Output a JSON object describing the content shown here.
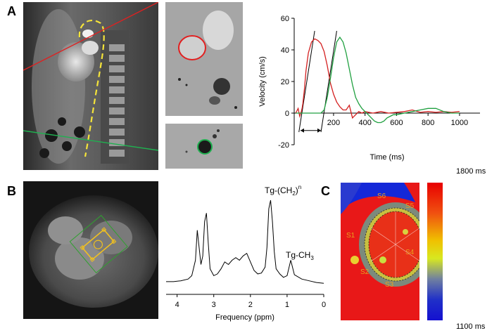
{
  "panels": {
    "a": {
      "letter": "A",
      "chart_data": {
        "type": "line",
        "xlabel": "Time (ms)",
        "ylabel": "Velocity (cm/s)",
        "xlim": [
          -50,
          1130
        ],
        "ylim": [
          -20,
          60
        ],
        "xticks": [
          "200",
          "400",
          "600",
          "800",
          "1000"
        ],
        "xtick_values": [
          200,
          400,
          600,
          800,
          1000
        ],
        "yticks": [
          "-20",
          "0",
          "20",
          "40",
          "60"
        ],
        "ytick_values": [
          -20,
          0,
          20,
          40,
          60
        ],
        "series": [
          {
            "color": "#d42020",
            "x": [
              -40,
              -25,
              -15,
              -5,
              0,
              5,
              15,
              25,
              40,
              60,
              80,
              100,
              120,
              140,
              160,
              180,
              200,
              220,
              240,
              260,
              280,
              300,
              320,
              340,
              360,
              380,
              400,
              450,
              500,
              550,
              600,
              650,
              700,
              750,
              800,
              850,
              900,
              950,
              1000
            ],
            "y": [
              0,
              3,
              -2,
              1,
              3,
              6,
              15,
              27,
              38,
              45,
              47,
              46,
              44,
              39,
              30,
              19,
              12,
              7,
              4,
              2,
              2,
              5,
              -3,
              -1,
              1,
              0,
              1,
              0,
              1,
              0,
              0.5,
              1,
              2,
              0.5,
              1,
              0.5,
              1,
              0.5,
              1
            ]
          },
          {
            "color": "#20a040",
            "x": [
              -40,
              0,
              40,
              80,
              120,
              140,
              160,
              180,
              200,
              220,
              240,
              260,
              280,
              300,
              320,
              340,
              360,
              380,
              400,
              420,
              440,
              460,
              480,
              500,
              520,
              540,
              560,
              580,
              600,
              650,
              700,
              750,
              800,
              850,
              900,
              950,
              1000
            ],
            "y": [
              0,
              0,
              0,
              0,
              0,
              2,
              10,
              22,
              35,
              45,
              48,
              45,
              38,
              28,
              18,
              10,
              6,
              3,
              1,
              -1,
              -3,
              -5,
              -6,
              -6,
              -5,
              -3,
              -2,
              -1,
              -1,
              0,
              1,
              2,
              3,
              3,
              1,
              0,
              0
            ]
          }
        ],
        "upslope_lines": [
          {
            "x": [
              -20,
              80
            ],
            "y": [
              -12,
              52
            ]
          },
          {
            "x": [
              120,
              220
            ],
            "y": [
              -12,
              52
            ]
          }
        ],
        "delay_arrow": {
          "x": [
            -10,
            120
          ],
          "y": -11
        }
      }
    },
    "b": {
      "letter": "B",
      "chart_data": {
        "type": "line",
        "xlabel": "Frequency  (ppm)",
        "ylabel": "",
        "xlim": [
          4.3,
          0
        ],
        "xticks": [
          "4",
          "3",
          "2",
          "1",
          "0"
        ],
        "xtick_values": [
          4,
          3,
          2,
          1,
          0
        ],
        "annotations": [
          {
            "base": "Tg-(CH",
            "sub": "2",
            "mid": ")",
            "sup": "n"
          },
          {
            "base": "Tg-CH",
            "sub": "3"
          }
        ],
        "series": [
          {
            "color": "#000000",
            "x": [
              4.3,
              4.1,
              3.9,
              3.7,
              3.6,
              3.5,
              3.45,
              3.4,
              3.35,
              3.3,
              3.25,
              3.2,
              3.15,
              3.1,
              3.0,
              2.9,
              2.8,
              2.7,
              2.6,
              2.5,
              2.4,
              2.3,
              2.2,
              2.1,
              2.0,
              1.9,
              1.8,
              1.7,
              1.6,
              1.55,
              1.5,
              1.45,
              1.4,
              1.35,
              1.3,
              1.2,
              1.1,
              1.0,
              0.9,
              0.8,
              0.6,
              0.4,
              0.2,
              0.0
            ],
            "y": [
              0.05,
              0.05,
              0.06,
              0.08,
              0.12,
              0.3,
              0.65,
              0.45,
              0.25,
              0.35,
              0.75,
              0.85,
              0.5,
              0.2,
              0.12,
              0.14,
              0.2,
              0.28,
              0.25,
              0.3,
              0.33,
              0.3,
              0.35,
              0.38,
              0.28,
              0.18,
              0.14,
              0.15,
              0.22,
              0.45,
              0.9,
              1.0,
              0.75,
              0.4,
              0.2,
              0.14,
              0.1,
              0.12,
              0.3,
              0.13,
              0.08,
              0.06,
              0.04,
              0.03
            ]
          }
        ]
      }
    },
    "c": {
      "letter": "C",
      "colorbar_max": "1800 ms",
      "colorbar_min": "1100 ms",
      "segments": [
        "S1",
        "S2",
        "S3",
        "S4",
        "S5",
        "S6"
      ]
    }
  }
}
